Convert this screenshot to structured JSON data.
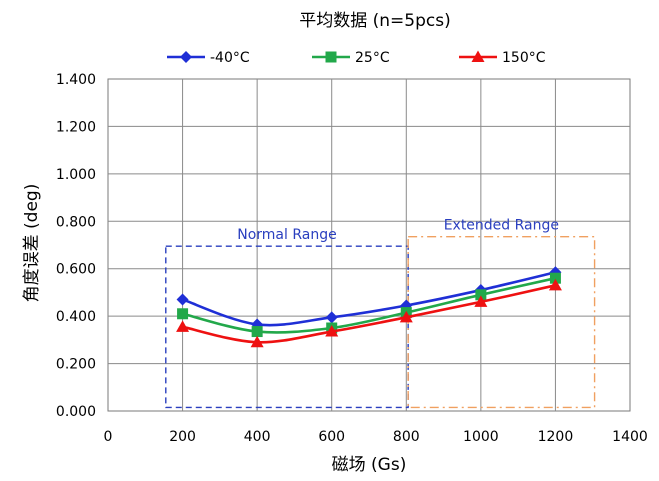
{
  "chart_data": {
    "type": "line",
    "title": "平均数据 (n=5pcs)",
    "xlabel": "磁场 (Gs)",
    "ylabel": "角度误差 (deg)",
    "xlim": [
      0,
      1400
    ],
    "ylim": [
      0.0,
      1.4
    ],
    "x_ticks": [
      0,
      200,
      400,
      600,
      800,
      1000,
      1200,
      1400
    ],
    "x_tick_labels": [
      "0",
      "200",
      "400",
      "600",
      "800",
      "1000",
      "1200",
      "1400"
    ],
    "y_ticks": [
      0.0,
      0.2,
      0.4,
      0.6,
      0.8,
      1.0,
      1.2,
      1.4
    ],
    "y_tick_labels": [
      "0.000",
      "0.200",
      "0.400",
      "0.600",
      "0.800",
      "1.000",
      "1.200",
      "1.400"
    ],
    "grid": true,
    "legend_position": "top",
    "x": [
      200,
      400,
      600,
      800,
      1000,
      1200
    ],
    "series": [
      {
        "name": "-40°C",
        "values": [
          0.47,
          0.365,
          0.395,
          0.445,
          0.51,
          0.585
        ],
        "color": "#1f2fd6",
        "marker": "diamond"
      },
      {
        "name": "25°C",
        "values": [
          0.41,
          0.335,
          0.35,
          0.415,
          0.49,
          0.56
        ],
        "color": "#22a84a",
        "marker": "square"
      },
      {
        "name": "150°C",
        "values": [
          0.355,
          0.29,
          0.335,
          0.395,
          0.46,
          0.53
        ],
        "color": "#ee1111",
        "marker": "triangle"
      }
    ],
    "annotations": [
      {
        "label": "Normal Range",
        "x_range": [
          155,
          805
        ],
        "y_range": [
          0.015,
          0.695
        ],
        "color": "#2a3fbf",
        "style": "dashed"
      },
      {
        "label": "Extended Range",
        "x_range": [
          805,
          1305
        ],
        "y_range": [
          0.015,
          0.735
        ],
        "color": "#f0a060",
        "style": "dash-dot"
      }
    ]
  }
}
